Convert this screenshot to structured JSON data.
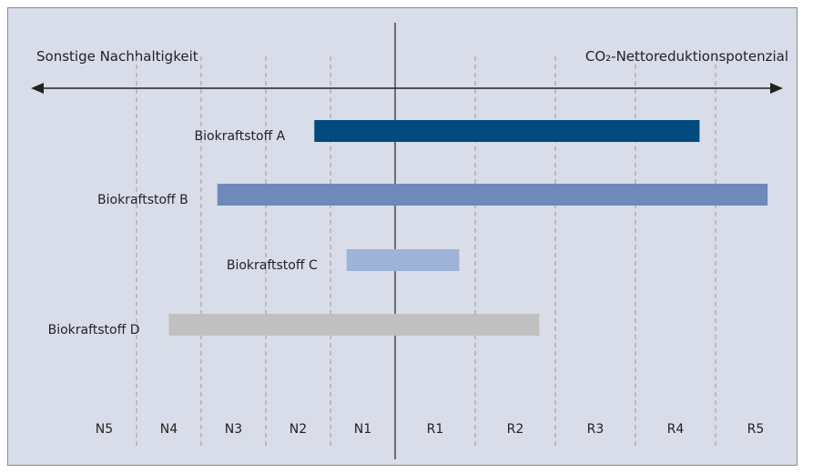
{
  "chart_data": {
    "type": "bar",
    "left_label": "Sonstige Nachhaltigkeit",
    "right_label": "CO₂-Nettoreduktionspotenzial",
    "categories": [
      "N5",
      "N4",
      "N3",
      "N2",
      "N1",
      "R1",
      "R2",
      "R3",
      "R4",
      "R5"
    ],
    "bars": [
      {
        "name": "Biokraftstoff A",
        "color": "#004a80",
        "start": 3.75,
        "end": 8.8
      },
      {
        "name": "Biokraftstoff B",
        "color": "#6d8ab8",
        "start": 2.25,
        "end": 9.65
      },
      {
        "name": "Biokraftstoff C",
        "color": "#9eb3d6",
        "start": 4.25,
        "end": 5.8
      },
      {
        "name": "Biokraftstoff D",
        "color": "#c0c0c0",
        "start": 1.5,
        "end": 6.8
      }
    ]
  }
}
